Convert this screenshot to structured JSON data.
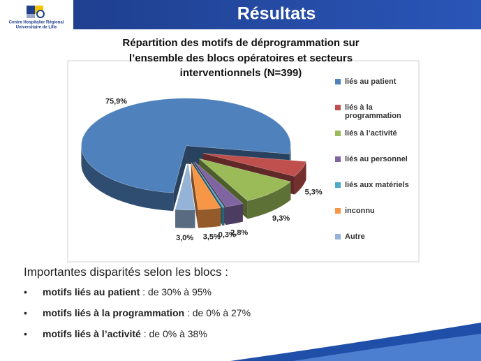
{
  "header": {
    "logo_lines": [
      "Centre Hospitalier Régional",
      "Universitaire de Lille"
    ],
    "title": "Résultats"
  },
  "chart_data": {
    "type": "pie",
    "title_lines": [
      "Répartition des motifs de déprogrammation sur",
      "l’ensemble des blocs opératoires et secteurs",
      "interventionnels (N=399)"
    ],
    "categories": [
      "liés au patient",
      "liés à la programmation",
      "liés à l’activité",
      "liés au personnel",
      "liés aux matériels",
      "inconnu",
      "Autre"
    ],
    "values": [
      75.9,
      5.3,
      9.3,
      2.8,
      0.3,
      3.5,
      3.0
    ],
    "value_labels": [
      "75,9%",
      "5,3%",
      "9,3%",
      "2,8%",
      "0,3%",
      "3,5%",
      "3,0%"
    ],
    "colors": [
      "#4f81bd",
      "#c0504d",
      "#9bbb59",
      "#8064a2",
      "#4bacc6",
      "#f79646",
      "#95b3d7"
    ],
    "legend": "right"
  },
  "notes": {
    "heading": "Importantes disparités selon les blocs :",
    "bullets": [
      {
        "bold": "motifs liés au patient",
        "rest": " : de 30% à 95%"
      },
      {
        "bold": "motifs liés à la programmation",
        "rest": " : de 0% à 27%"
      },
      {
        "bold": "motifs liés à l’activité",
        "rest": " : de 0% à 38%"
      }
    ]
  }
}
